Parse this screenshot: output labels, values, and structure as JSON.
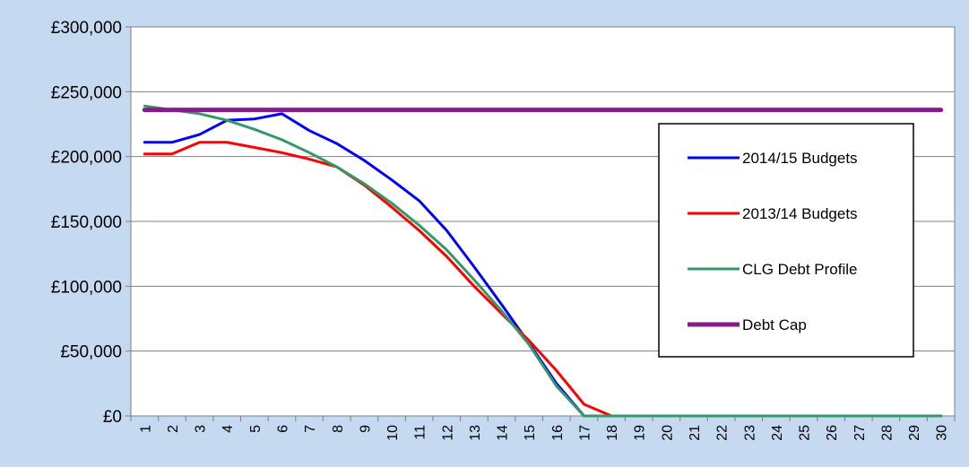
{
  "colors": {
    "outer_background": "#c5d9f1",
    "plot_background": "#ffffff",
    "gridline": "#808080"
  },
  "chart_data": {
    "type": "line",
    "title": "",
    "xlabel": "",
    "ylabel": "",
    "x": [
      1,
      2,
      3,
      4,
      5,
      6,
      7,
      8,
      9,
      10,
      11,
      12,
      13,
      14,
      15,
      16,
      17,
      18,
      19,
      20,
      21,
      22,
      23,
      24,
      25,
      26,
      27,
      28,
      29,
      30
    ],
    "x_tick_labels": [
      "1",
      "2",
      "3",
      "4",
      "5",
      "6",
      "7",
      "8",
      "9",
      "10",
      "11",
      "12",
      "13",
      "14",
      "15",
      "16",
      "17",
      "18",
      "19",
      "20",
      "21",
      "22",
      "23",
      "24",
      "25",
      "26",
      "27",
      "28",
      "29",
      "30"
    ],
    "ylim": [
      0,
      300000
    ],
    "y_tick_values": [
      0,
      50000,
      100000,
      150000,
      200000,
      250000,
      300000
    ],
    "y_tick_labels": [
      "£0",
      "£50,000",
      "£100,000",
      "£150,000",
      "£200,000",
      "£250,000",
      "£300,000"
    ],
    "grid": true,
    "legend_position": "right",
    "series": [
      {
        "name": "2014/15 Budgets",
        "color": "#0000ff",
        "values": [
          211000,
          211000,
          217000,
          228000,
          229000,
          233000,
          220000,
          210000,
          197000,
          182000,
          166000,
          143000,
          115000,
          86000,
          56000,
          25000,
          0,
          0,
          0,
          0,
          0,
          0,
          0,
          0,
          0,
          0,
          0,
          0,
          0,
          0
        ]
      },
      {
        "name": "2013/14 Budgets",
        "color": "#ff0000",
        "values": [
          202000,
          202000,
          211000,
          211000,
          207000,
          203000,
          198000,
          192000,
          178000,
          161000,
          143000,
          123000,
          100000,
          79000,
          58000,
          35000,
          9000,
          0,
          0,
          0,
          0,
          0,
          0,
          0,
          0,
          0,
          0,
          0,
          0,
          0
        ]
      },
      {
        "name": "CLG Debt Profile",
        "color": "#339966",
        "values": [
          239000,
          236000,
          233000,
          228000,
          221000,
          213000,
          203000,
          192000,
          179000,
          164000,
          147000,
          128000,
          105000,
          81000,
          55000,
          23000,
          0,
          0,
          0,
          0,
          0,
          0,
          0,
          0,
          0,
          0,
          0,
          0,
          0,
          0
        ]
      },
      {
        "name": "Debt Cap",
        "color": "#7f1f87",
        "values": [
          236000,
          236000,
          236000,
          236000,
          236000,
          236000,
          236000,
          236000,
          236000,
          236000,
          236000,
          236000,
          236000,
          236000,
          236000,
          236000,
          236000,
          236000,
          236000,
          236000,
          236000,
          236000,
          236000,
          236000,
          236000,
          236000,
          236000,
          236000,
          236000,
          236000
        ]
      }
    ]
  }
}
